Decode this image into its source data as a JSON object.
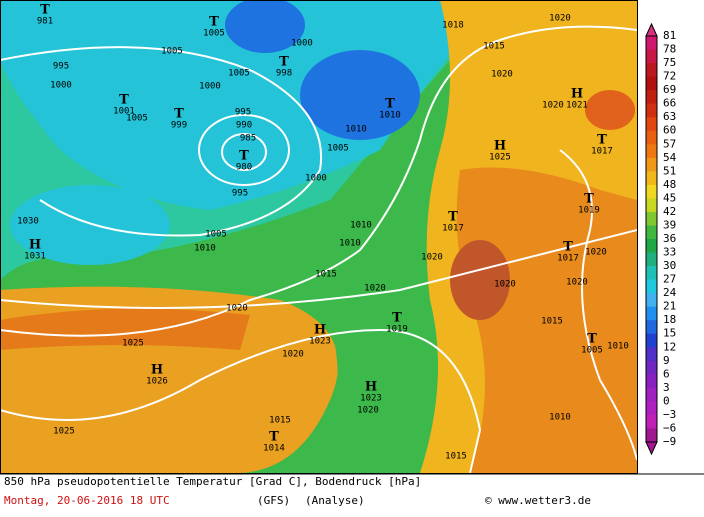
{
  "map": {
    "markers": [
      {
        "symbol": "T",
        "pressure": "981"
      },
      {
        "symbol": "T",
        "pressure": "1005"
      },
      {
        "symbol": "T",
        "pressure": "998"
      },
      {
        "symbol": "T",
        "pressure": "1001"
      },
      {
        "symbol": "T",
        "pressure": "999"
      },
      {
        "symbol": "T",
        "pressure": "980"
      },
      {
        "symbol": "H",
        "pressure": "1031"
      },
      {
        "symbol": "T",
        "pressure": "1010"
      },
      {
        "symbol": "H",
        "pressure": "1021"
      },
      {
        "symbol": "H",
        "pressure": "1025"
      },
      {
        "symbol": "T",
        "pressure": "1017"
      },
      {
        "symbol": "T",
        "pressure": "1019"
      },
      {
        "symbol": "T",
        "pressure": "1017"
      },
      {
        "symbol": "T",
        "pressure": "1017"
      },
      {
        "symbol": "T",
        "pressure": "1019"
      },
      {
        "symbol": "H",
        "pressure": "1023"
      },
      {
        "symbol": "H",
        "pressure": "1026"
      },
      {
        "symbol": "H",
        "pressure": "1023"
      },
      {
        "symbol": "T",
        "pressure": "1014"
      },
      {
        "symbol": "T",
        "pressure": "1005"
      }
    ],
    "isobar_labels": [
      "1005",
      "995",
      "1000",
      "1000",
      "1005",
      "1000",
      "1005",
      "995",
      "990",
      "985",
      "995",
      "1000",
      "1005",
      "1005",
      "1010",
      "1010",
      "1010",
      "1015",
      "1015",
      "1018",
      "1020",
      "1020",
      "1020",
      "1020",
      "1020",
      "1020",
      "1020",
      "1020",
      "1020",
      "1020",
      "1020",
      "1025",
      "1025",
      "1030",
      "1015",
      "1010",
      "1010",
      "1015",
      "1015",
      "1010"
    ]
  },
  "colorbar": {
    "labels": [
      "81",
      "78",
      "75",
      "72",
      "69",
      "66",
      "63",
      "60",
      "57",
      "54",
      "51",
      "48",
      "45",
      "42",
      "39",
      "36",
      "33",
      "30",
      "27",
      "24",
      "21",
      "18",
      "15",
      "12",
      "9",
      "6",
      "3",
      "0",
      "−3",
      "−6",
      "−9"
    ]
  },
  "footer": {
    "description": "850 hPa pseudopotentielle Temperatur [Grad C], Bodendruck [hPa]",
    "date": "Montag, 20-06-2016  18 UTC",
    "model": "(GFS)",
    "analysis": "(Analyse)",
    "credit": "© www.wetter3.de"
  }
}
